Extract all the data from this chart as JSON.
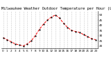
{
  "title": "Milwaukee Weather Outdoor Temperature per Hour (Last 24 Hours)",
  "hours": [
    0,
    1,
    2,
    3,
    4,
    5,
    6,
    7,
    8,
    9,
    10,
    11,
    12,
    13,
    14,
    15,
    16,
    17,
    18,
    19,
    20,
    21,
    22,
    23
  ],
  "temps": [
    28,
    26,
    24,
    22,
    21,
    20,
    22,
    25,
    30,
    36,
    41,
    45,
    48,
    50,
    47,
    42,
    38,
    35,
    34,
    33,
    31,
    29,
    27,
    26
  ],
  "line_color": "#ff0000",
  "marker_color": "#000000",
  "background_color": "#ffffff",
  "grid_color": "#999999",
  "ylim": [
    18,
    54
  ],
  "yticks": [
    20,
    25,
    30,
    35,
    40,
    45,
    50
  ],
  "title_fontsize": 4.0,
  "tick_fontsize": 3.0,
  "figsize": [
    1.6,
    0.87
  ],
  "dpi": 100
}
